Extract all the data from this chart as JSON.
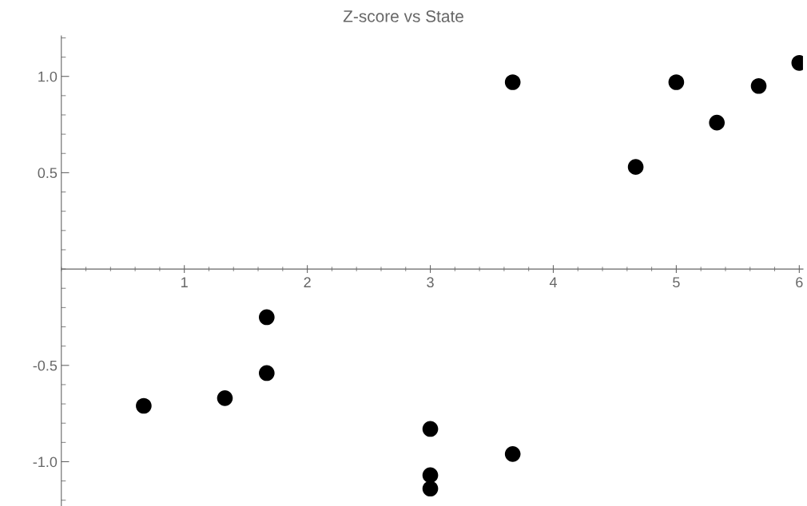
{
  "chart_data": {
    "type": "scatter",
    "title": "Z-score vs State",
    "x": [
      0.67,
      1.33,
      1.67,
      1.67,
      3,
      3,
      3,
      3.67,
      3.67,
      4.67,
      5,
      5.33,
      5.67,
      6
    ],
    "series": [
      {
        "color": "#000000",
        "values": [
          -0.71,
          -0.67,
          -0.54,
          -0.25,
          -0.83,
          -1.07,
          -1.14,
          -0.96,
          0.97,
          0.53,
          0.97,
          0.76,
          0.95,
          1.07
        ]
      }
    ],
    "xlim": [
      0,
      6.03
    ],
    "ylim": [
      -1.23,
      1.21
    ],
    "xticks": [
      1,
      2,
      3,
      4,
      5,
      6
    ],
    "yticks": [
      {
        "value": -1.0,
        "label": "-1.0"
      },
      {
        "value": -0.5,
        "label": "-0.5"
      },
      {
        "value": 0.5,
        "label": "0.5"
      },
      {
        "value": 1.0,
        "label": "1.0"
      }
    ],
    "marker": "circle",
    "grid": false,
    "legend": false
  }
}
